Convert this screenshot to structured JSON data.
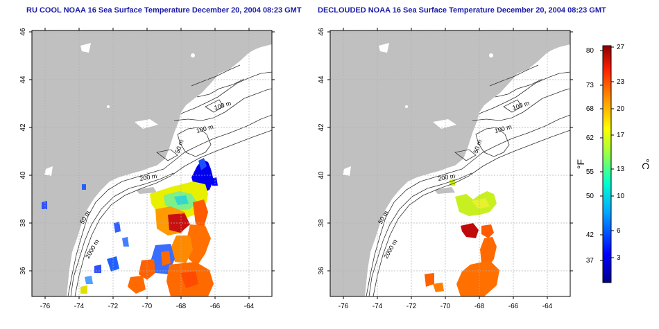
{
  "panels": [
    {
      "title": "RU COOL NOAA 16 Sea Surface Temperature December 20, 2004 08:23 GMT",
      "lat_ticks": [
        "46",
        "44",
        "42",
        "40",
        "38",
        "36"
      ],
      "lon_ticks": [
        "-76",
        "-74",
        "-72",
        "-70",
        "-68",
        "-66",
        "-64"
      ],
      "contour_labels": [
        "100 m",
        "100 m",
        "50 m",
        "200 m",
        "50 m",
        "2000 m"
      ]
    },
    {
      "title": "DECLOUDED NOAA 16 Sea Surface Temperature December 20, 2004 08:23 GMT",
      "lat_ticks": [
        "46",
        "44",
        "42",
        "40",
        "38",
        "36"
      ],
      "lon_ticks": [
        "-76",
        "-74",
        "-72",
        "-70",
        "-68",
        "-66",
        "-64"
      ],
      "contour_labels": [
        "100 m",
        "100 m",
        "50 m",
        "200 m",
        "50 m",
        "2000 m"
      ]
    }
  ],
  "colorbar": {
    "fahrenheit_ticks": [
      "80",
      "73",
      "68",
      "62",
      "55",
      "50",
      "42",
      "37"
    ],
    "celsius_ticks": [
      "27",
      "23",
      "20",
      "17",
      "13",
      "10",
      "6",
      "3"
    ],
    "fahrenheit_unit": "°F",
    "celsius_unit": "°C"
  },
  "colors": {
    "title": "#1a1aa8",
    "land": "#c0c0c0",
    "ocean": "#ffffff",
    "grid": "#b0b0b0"
  }
}
